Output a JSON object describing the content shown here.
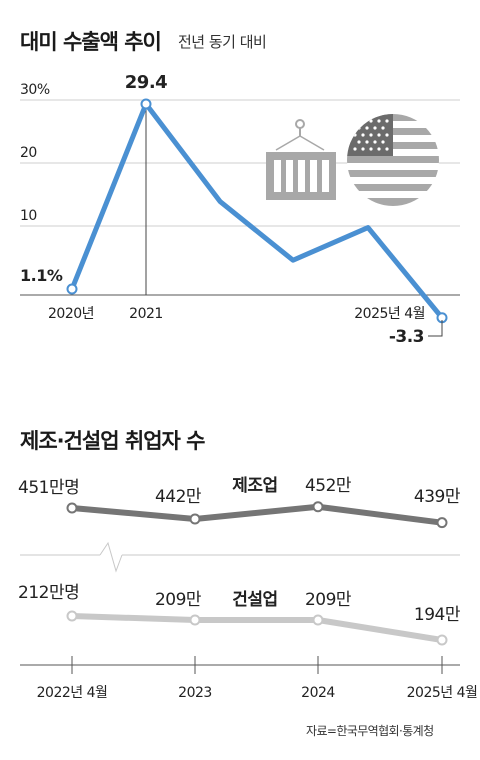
{
  "chart_data": [
    {
      "type": "line",
      "title": "대미 수출액 추이",
      "subtitle": "전년 동기 대비",
      "x": [
        "2020년",
        "2021",
        "",
        "",
        "",
        "2025년 4월"
      ],
      "values": [
        1.1,
        29.4,
        14.5,
        5.5,
        10.5,
        -3.3
      ],
      "y_ticks": [
        "30%",
        "20",
        "10"
      ],
      "ylim": [
        0,
        30
      ],
      "data_labels": {
        "first": "1.1%",
        "peak": "29.4",
        "last": "-3.3"
      },
      "grid": true,
      "colors": {
        "line": "#4a90d2",
        "icons": "#a8a8a8",
        "grid": "#cfcfcf"
      },
      "icons": [
        "shipping-container-icon",
        "us-flag-icon"
      ]
    },
    {
      "type": "line",
      "title": "제조·건설업 취업자 수",
      "categories": [
        "2022년 4월",
        "2023",
        "2024",
        "2025년 4월"
      ],
      "series": [
        {
          "name": "제조업",
          "values": [
            451,
            442,
            452,
            439
          ],
          "labels": [
            "451만명",
            "442만",
            "452만",
            "439만"
          ],
          "color": "#757575"
        },
        {
          "name": "건설업",
          "values": [
            212,
            209,
            209,
            194
          ],
          "labels": [
            "212만명",
            "209만",
            "209만",
            "194만"
          ],
          "color": "#c8c8c8"
        }
      ],
      "axis_break": true
    }
  ],
  "source": "자료=한국무역협회·통계청"
}
